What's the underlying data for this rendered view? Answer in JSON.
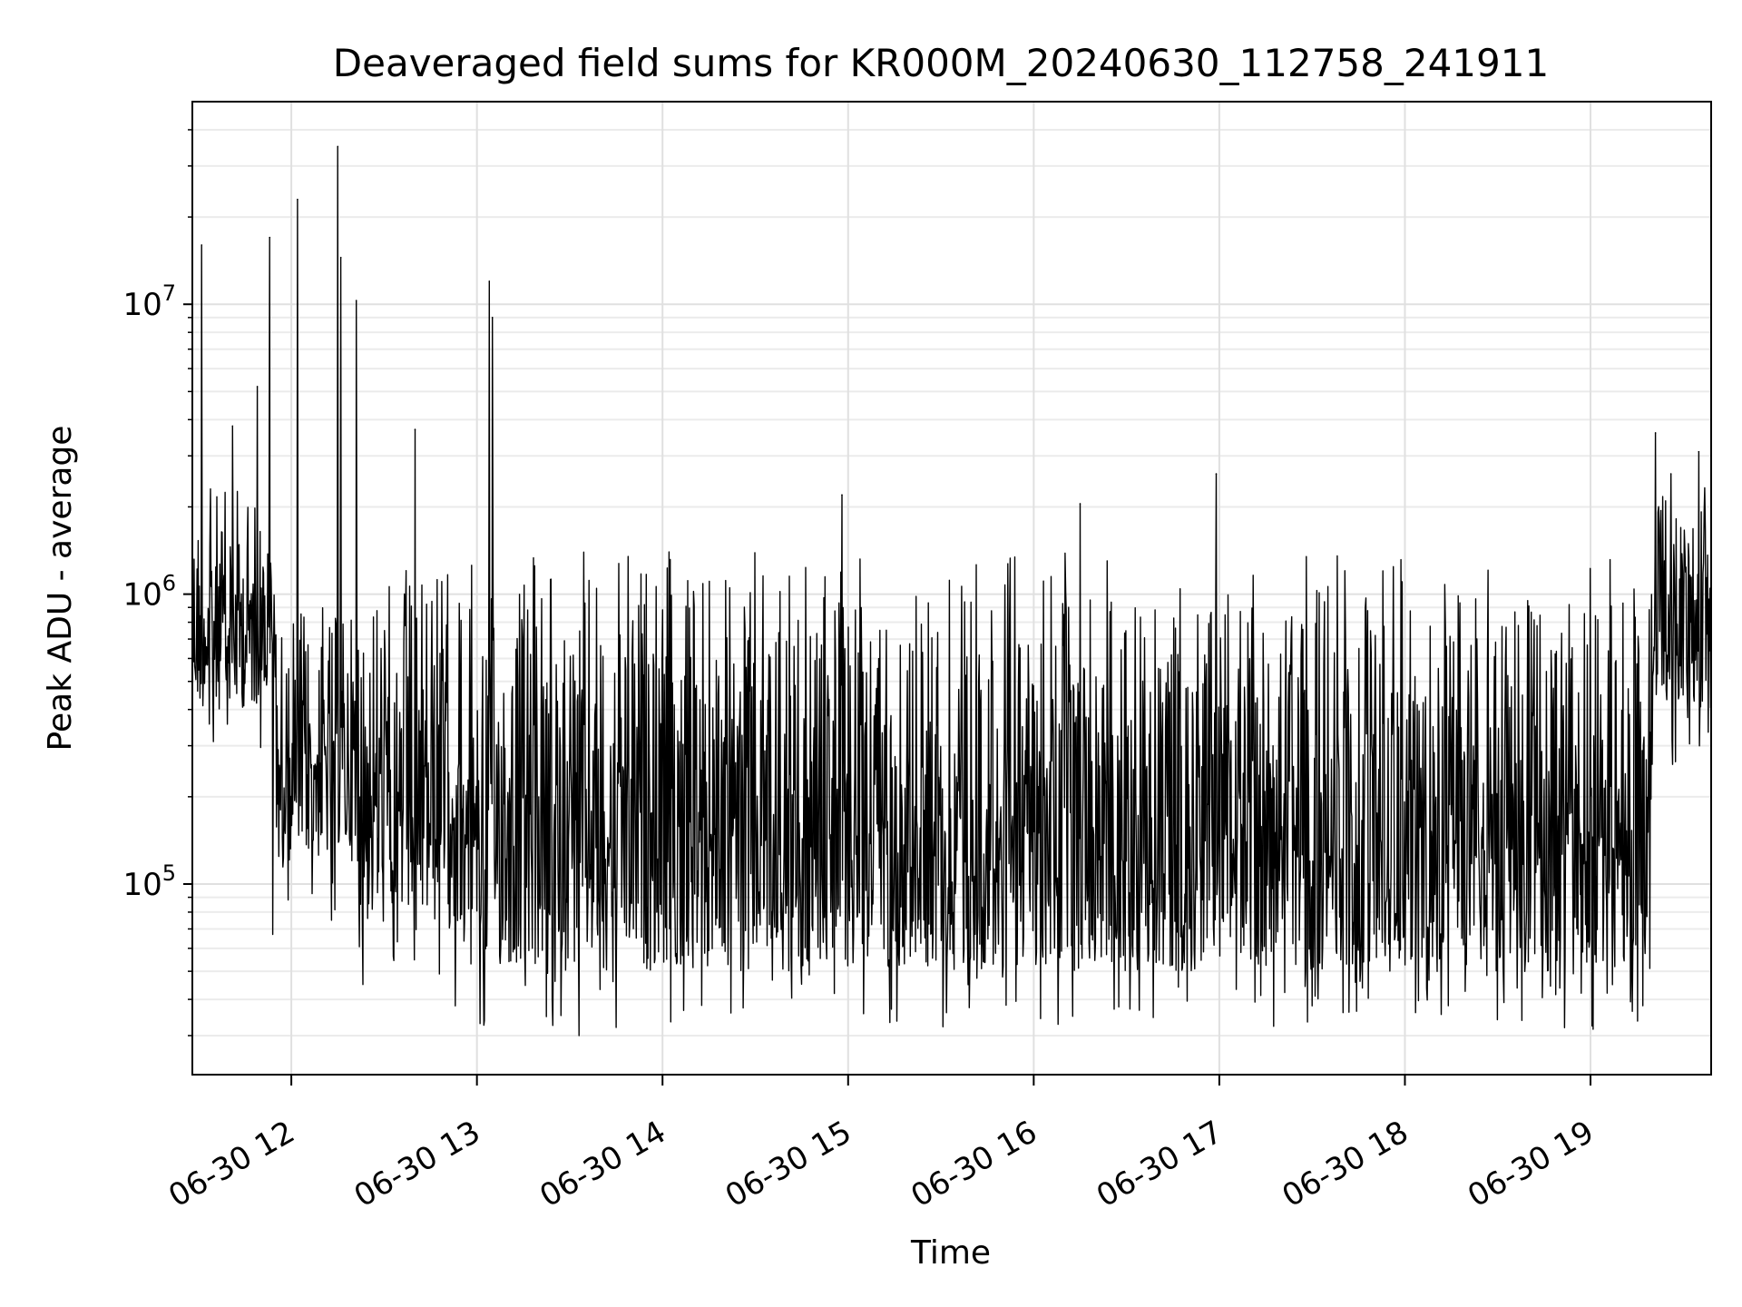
{
  "chart_data": {
    "type": "line",
    "title": "Deaveraged field sums for KR000M_20240630_112758_241911",
    "xlabel": "Time",
    "ylabel": "Peak ADU - average",
    "yscale": "log",
    "ylim": [
      22000,
      50000000
    ],
    "xlim": [
      "2024-06-30 11:28",
      "2024-06-30 19:39"
    ],
    "grid": true,
    "line_color": "#000000",
    "x_ticks": [
      "06-30 12",
      "06-30 13",
      "06-30 14",
      "06-30 15",
      "06-30 16",
      "06-30 17",
      "06-30 18",
      "06-30 19"
    ],
    "y_ticks": [
      {
        "value": 100000,
        "base": "10",
        "exp": "5"
      },
      {
        "value": 1000000,
        "base": "10",
        "exp": "6"
      },
      {
        "value": 10000000,
        "base": "10",
        "exp": "7"
      }
    ],
    "series": [
      {
        "values_by_segment": [
          {
            "start": "2024-06-30 11:28",
            "end": "2024-06-30 11:55",
            "typical_low": 400000,
            "typical_high": 2500000
          },
          {
            "start": "2024-06-30 11:55",
            "end": "2024-06-30 12:20",
            "typical_low": 120000,
            "typical_high": 1000000
          },
          {
            "start": "2024-06-30 12:20",
            "end": "2024-06-30 13:00",
            "typical_low": 70000,
            "typical_high": 1500000
          },
          {
            "start": "2024-06-30 13:00",
            "end": "2024-06-30 19:20",
            "typical_low": 50000,
            "typical_high": 1500000
          },
          {
            "start": "2024-06-30 19:20",
            "end": "2024-06-30 19:39",
            "typical_low": 400000,
            "typical_high": 2500000
          }
        ],
        "peaks": [
          {
            "x": "2024-06-30 11:31",
            "y": 16000000
          },
          {
            "x": "2024-06-30 11:53",
            "y": 17000000
          },
          {
            "x": "2024-06-30 12:02",
            "y": 23000000
          },
          {
            "x": "2024-06-30 12:15",
            "y": 35000000
          },
          {
            "x": "2024-06-30 12:16",
            "y": 14500000
          },
          {
            "x": "2024-06-30 12:21",
            "y": 10300000
          },
          {
            "x": "2024-06-30 13:04",
            "y": 12000000
          },
          {
            "x": "2024-06-30 13:05",
            "y": 9000000
          },
          {
            "x": "2024-06-30 11:49",
            "y": 5200000
          },
          {
            "x": "2024-06-30 11:41",
            "y": 3800000
          },
          {
            "x": "2024-06-30 12:40",
            "y": 3700000
          },
          {
            "x": "2024-06-30 14:58",
            "y": 2200000
          },
          {
            "x": "2024-06-30 16:15",
            "y": 2050000
          },
          {
            "x": "2024-06-30 16:59",
            "y": 2600000
          },
          {
            "x": "2024-06-30 19:21",
            "y": 3600000
          },
          {
            "x": "2024-06-30 19:26",
            "y": 2600000
          },
          {
            "x": "2024-06-30 19:35",
            "y": 3100000
          }
        ],
        "troughs": [
          {
            "x": "2024-06-30 11:54",
            "y": 67000
          },
          {
            "x": "2024-06-30 12:13",
            "y": 75000
          },
          {
            "x": "2024-06-30 12:53",
            "y": 38000
          },
          {
            "x": "2024-06-30 13:01",
            "y": 33000
          },
          {
            "x": "2024-06-30 13:33",
            "y": 30000
          },
          {
            "x": "2024-06-30 13:45",
            "y": 32000
          },
          {
            "x": "2024-06-30 15:14",
            "y": 37000
          },
          {
            "x": "2024-06-30 16:26",
            "y": 37000
          },
          {
            "x": "2024-06-30 17:30",
            "y": 38000
          },
          {
            "x": "2024-06-30 17:40",
            "y": 36000
          },
          {
            "x": "2024-06-30 18:32",
            "y": 39000
          },
          {
            "x": "2024-06-30 18:57",
            "y": 42000
          }
        ]
      }
    ]
  }
}
